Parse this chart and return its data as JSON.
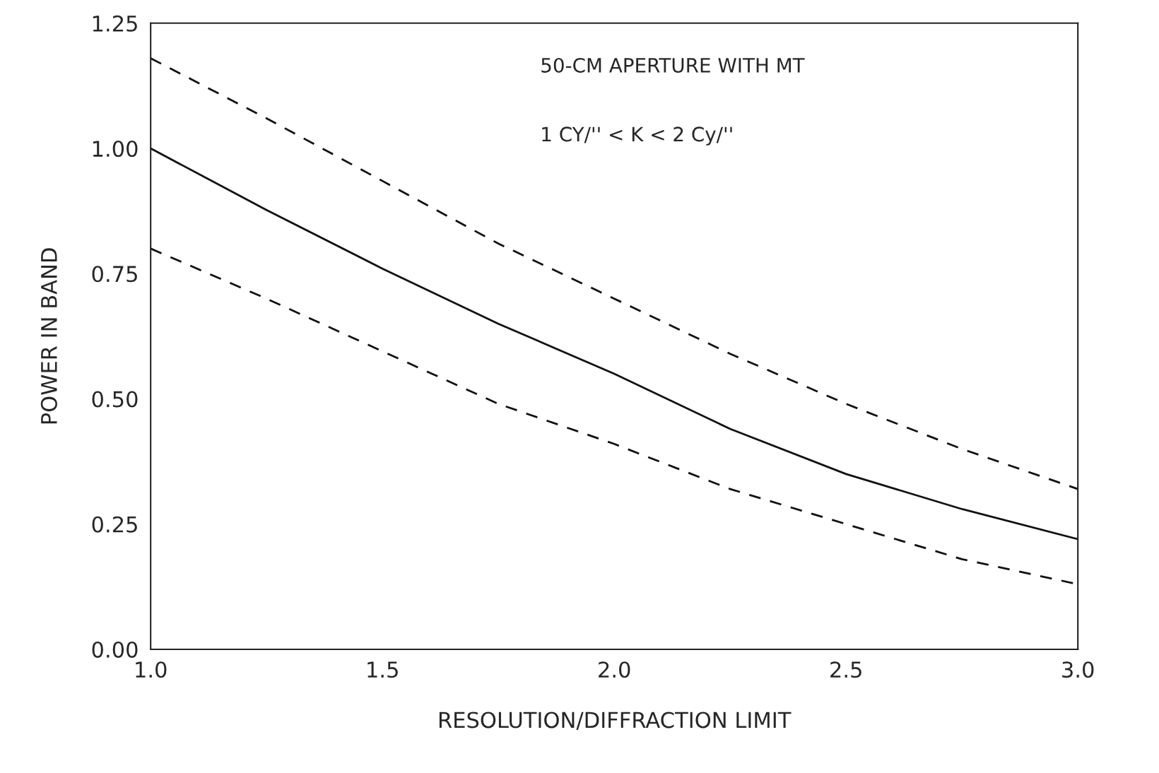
{
  "chart_data": {
    "type": "line",
    "xlabel": "RESOLUTION/DIFFRACTION LIMIT",
    "ylabel": "POWER IN BAND",
    "annotations": [
      "50-CM APERTURE WITH MT",
      "1 CY/'' < K < 2 Cy/''"
    ],
    "x": [
      1.0,
      1.25,
      1.5,
      1.75,
      2.0,
      2.25,
      2.5,
      2.75,
      3.0
    ],
    "series": [
      {
        "color": "#111111",
        "line_style": "dashed",
        "values": [
          1.18,
          1.06,
          0.935,
          0.81,
          0.7,
          0.59,
          0.49,
          0.4,
          0.32
        ]
      },
      {
        "color": "#111111",
        "line_style": "solid",
        "values": [
          1.0,
          0.877,
          0.76,
          0.65,
          0.55,
          0.44,
          0.35,
          0.28,
          0.22
        ]
      },
      {
        "color": "#111111",
        "line_style": "dashed",
        "values": [
          0.8,
          0.7,
          0.595,
          0.49,
          0.41,
          0.32,
          0.25,
          0.18,
          0.13
        ]
      }
    ],
    "xlim": [
      1.0,
      3.0
    ],
    "ylim": [
      0,
      1.25
    ],
    "xticks": [
      {
        "value": 1.0,
        "label": "1.0"
      },
      {
        "value": 1.5,
        "label": "1.5"
      },
      {
        "value": 2.0,
        "label": "2.0"
      },
      {
        "value": 2.5,
        "label": "2.5"
      },
      {
        "value": 3.0,
        "label": "3.0"
      }
    ],
    "yticks": [
      {
        "value": 0,
        "label": "0.00"
      },
      {
        "value": 0.25,
        "label": "0.25"
      },
      {
        "value": 0.5,
        "label": "0.50"
      },
      {
        "value": 0.75,
        "label": "0.75"
      },
      {
        "value": 1.0,
        "label": "1.00"
      },
      {
        "value": 1.25,
        "label": "1.25"
      }
    ],
    "grid": false,
    "legend": false
  }
}
